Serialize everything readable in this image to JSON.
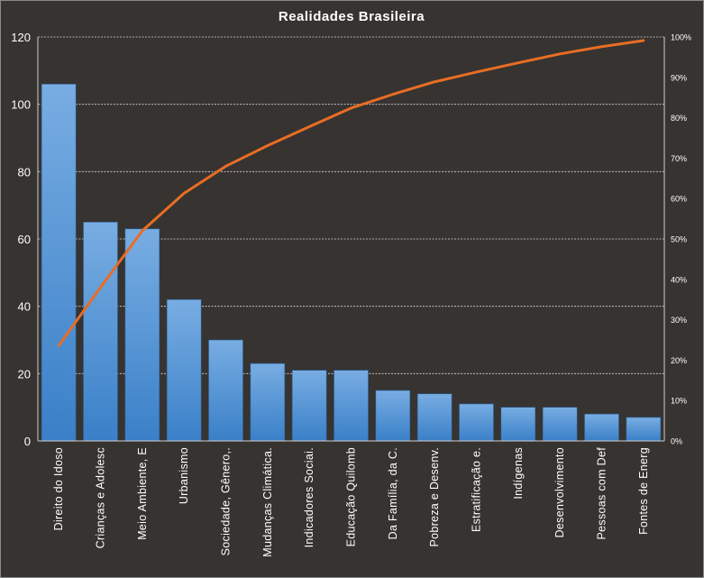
{
  "chart_data": {
    "type": "bar",
    "title": "Realidades  Brasileira",
    "categories": [
      "Direito do Idoso",
      "Crianças e Adolesc",
      "Meio Ambiente, E",
      "Urbanismo",
      "Sociedade, Gênero,.",
      "Mudanças Climática.",
      "Indicadores Sociai.",
      "Educação Quilomb",
      "Da Família, da C.",
      "Pobreza e Desenv.",
      "Estratificação e.",
      "Indígenas",
      "Desenvolvimento",
      "Pessoas com Def",
      "Fontes de Energ"
    ],
    "series": [
      {
        "values": [
          106,
          65,
          63,
          42,
          30,
          23,
          21,
          21,
          15,
          14,
          11,
          10,
          10,
          8,
          7
        ]
      },
      {
        "axis": "right",
        "type": "line",
        "values": [
          23.6,
          38.0,
          52.0,
          61.3,
          68.0,
          73.1,
          77.8,
          82.4,
          85.8,
          88.9,
          91.3,
          93.6,
          95.8,
          97.6,
          99.1
        ]
      }
    ],
    "y_ticks": [
      "0",
      "20",
      "40",
      "60",
      "80",
      "100",
      "120"
    ],
    "ylim": [
      0,
      120
    ],
    "y2_ticks": [
      "0%",
      "10%",
      "20%",
      "30%",
      "40%",
      "50%",
      "60%",
      "70%",
      "80%",
      "90%",
      "100%"
    ],
    "y2lim": [
      0,
      100
    ],
    "grid": true,
    "colors": {
      "background": "#363331",
      "bar_top": "#78ade2",
      "bar_bottom": "#3a80c8",
      "line": "#e86d24",
      "grid": "#d8d8d8",
      "text": "#ffffff"
    }
  }
}
